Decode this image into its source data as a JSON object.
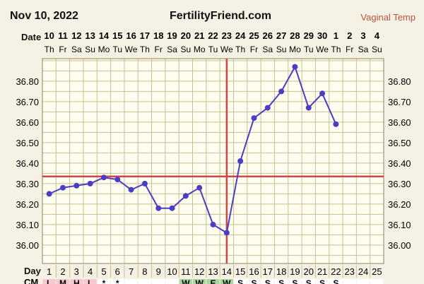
{
  "header": {
    "date": "Nov 10, 2022",
    "site": "FertilityFriend.com",
    "temp_label": "Vaginal Temp"
  },
  "date_row_label": "Date",
  "day_row_label": "Day",
  "chart_data": {
    "type": "line",
    "dates": [
      "10",
      "11",
      "12",
      "13",
      "14",
      "15",
      "16",
      "17",
      "18",
      "19",
      "20",
      "21",
      "22",
      "23",
      "24",
      "25",
      "26",
      "27",
      "28",
      "29",
      "30",
      "1",
      "2",
      "3",
      "4"
    ],
    "weekdays": [
      "Th",
      "Fr",
      "Sa",
      "Su",
      "Mo",
      "Tu",
      "We",
      "Th",
      "Fr",
      "Sa",
      "Su",
      "Mo",
      "Tu",
      "We",
      "Th",
      "Fr",
      "Sa",
      "Su",
      "Mo",
      "Tu",
      "We",
      "Th",
      "Fr",
      "Sa",
      "Su"
    ],
    "cycle_days": [
      "1",
      "2",
      "3",
      "4",
      "5",
      "6",
      "7",
      "8",
      "9",
      "10",
      "11",
      "12",
      "13",
      "14",
      "15",
      "16",
      "17",
      "18",
      "19",
      "20",
      "21",
      "22",
      "23",
      "24",
      "25"
    ],
    "temps": [
      36.25,
      36.28,
      36.29,
      36.3,
      36.33,
      36.32,
      36.27,
      36.3,
      36.18,
      36.18,
      36.24,
      36.28,
      36.1,
      36.06,
      36.41,
      36.62,
      36.67,
      36.75,
      36.87,
      36.67,
      36.74,
      36.59,
      null,
      null,
      null
    ],
    "y_ticks": [
      "36.80",
      "36.70",
      "36.60",
      "36.50",
      "36.40",
      "36.30",
      "36.20",
      "36.10",
      "36.00"
    ],
    "ylim": [
      35.91,
      36.91
    ],
    "coverline": 36.335,
    "ovulation_day": "14",
    "colors": {
      "line": "#4b3ec2",
      "grid": "#c8c08e",
      "coverline": "#d64545",
      "ovulation": "#d64545",
      "plot_bg": "#fffdf0"
    },
    "bottom_row": [
      {
        "text": "CM",
        "bg": "#f5f1e4"
      },
      {
        "text": "L",
        "bg": "#f6c9d2"
      },
      {
        "text": "M",
        "bg": "#f6c9d2"
      },
      {
        "text": "H",
        "bg": "#f6c9d2"
      },
      {
        "text": "L",
        "bg": "#f6c9d2"
      },
      {
        "text": "*",
        "bg": "#ffffff"
      },
      {
        "text": "*",
        "bg": "#ffffff"
      },
      {
        "text": "",
        "bg": "#ffffff"
      },
      {
        "text": "",
        "bg": "#ffffff"
      },
      {
        "text": "",
        "bg": "#ffffff"
      },
      {
        "text": "",
        "bg": "#ffffff"
      },
      {
        "text": "W",
        "bg": "#a8d8a0"
      },
      {
        "text": "W",
        "bg": "#a8d8a0"
      },
      {
        "text": "E",
        "bg": "#a8d8a0"
      },
      {
        "text": "W",
        "bg": "#a8d8a0"
      },
      {
        "text": "S",
        "bg": "#ffffff"
      },
      {
        "text": "S",
        "bg": "#ffffff"
      },
      {
        "text": "S",
        "bg": "#ffffff"
      },
      {
        "text": "S",
        "bg": "#ffffff"
      },
      {
        "text": "S",
        "bg": "#ffffff"
      },
      {
        "text": "S",
        "bg": "#ffffff"
      },
      {
        "text": "S",
        "bg": "#ffffff"
      },
      {
        "text": "S",
        "bg": "#ffffff"
      },
      {
        "text": "",
        "bg": "#ffffff"
      },
      {
        "text": "",
        "bg": "#ffffff"
      },
      {
        "text": "",
        "bg": "#ffffff"
      }
    ]
  }
}
